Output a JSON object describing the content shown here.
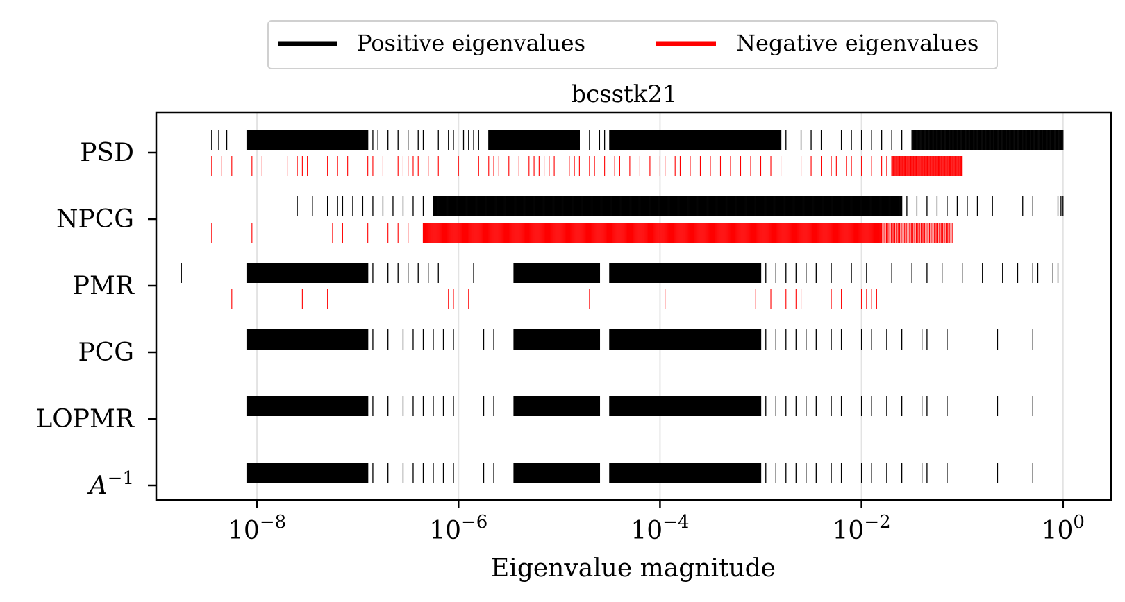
{
  "chart_data": {
    "type": "eventplot",
    "title": "bcsstk21",
    "xlabel": "Eigenvalue magnitude",
    "ylabel": "",
    "xscale": "log",
    "xlim": [
      1e-09,
      3
    ],
    "x_ticks": [
      1e-08,
      1e-06,
      0.0001,
      0.01,
      1
    ],
    "x_tick_labels": [
      {
        "base": "10",
        "exp": "−8"
      },
      {
        "base": "10",
        "exp": "−6"
      },
      {
        "base": "10",
        "exp": "−4"
      },
      {
        "base": "10",
        "exp": "−2"
      },
      {
        "base": "10",
        "exp": "0"
      }
    ],
    "grid": "x-major",
    "legend_position": "top-center-outside",
    "legend": [
      {
        "label": "Positive eigenvalues",
        "color": "#000000"
      },
      {
        "label": "Negative eigenvalues",
        "color": "#ff0000"
      }
    ],
    "methods": [
      {
        "label": "PSD",
        "positive": {
          "segments": [
            [
              -8.1,
              -6.9,
              350
            ],
            [
              -5.7,
              -4.8,
              250
            ],
            [
              -4.5,
              -2.8,
              300
            ],
            [
              -1.5,
              0.0,
              200
            ]
          ],
          "points": [
            -8.45,
            -8.38,
            -8.3,
            -6.85,
            -6.8,
            -6.7,
            -6.6,
            -6.5,
            -6.4,
            -6.35,
            -6.2,
            -6.1,
            -6.05,
            -5.95,
            -5.9,
            -5.85,
            -5.8,
            -4.7,
            -4.6,
            -4.55,
            -2.75,
            -2.6,
            -2.5,
            -2.4,
            -2.2,
            -2.1,
            -2.0,
            -1.9,
            -1.8,
            -1.7,
            -1.6
          ]
        },
        "negative": {
          "points": [
            -8.45,
            -8.35,
            -8.25,
            -8.05,
            -7.95,
            -7.7,
            -7.6,
            -7.55,
            -7.5,
            -7.3,
            -7.2,
            -7.1,
            -6.9,
            -6.85,
            -6.75,
            -6.6,
            -6.55,
            -6.5,
            -6.45,
            -6.4,
            -6.3,
            -6.2,
            -6.0,
            -5.8,
            -5.7,
            -5.65,
            -5.6,
            -5.5,
            -5.4,
            -5.3,
            -5.25,
            -5.2,
            -5.15,
            -5.1,
            -5.05,
            -4.9,
            -4.85,
            -4.8,
            -4.7,
            -4.65,
            -4.55,
            -4.45,
            -4.4,
            -4.3,
            -4.2,
            -4.1,
            -4.0,
            -3.95,
            -3.85,
            -3.8,
            -3.7,
            -3.6,
            -3.5,
            -3.4,
            -3.3,
            -3.2,
            -3.1,
            -3.0,
            -2.9,
            -2.8,
            -2.6,
            -2.5,
            -2.4,
            -2.3,
            -2.25,
            -2.15,
            -2.1,
            -2.0,
            -1.9,
            -1.8,
            -1.75,
            -1.7
          ],
          "segments": [
            [
              -1.7,
              -1.0,
              90
            ]
          ]
        }
      },
      {
        "label": "NPCG",
        "positive": {
          "segments": [
            [
              -6.25,
              -1.6,
              700
            ]
          ],
          "points": [
            -7.6,
            -7.45,
            -7.3,
            -7.2,
            -7.15,
            -7.05,
            -6.95,
            -6.85,
            -6.75,
            -6.65,
            -6.55,
            -6.45,
            -6.35,
            -1.55,
            -1.45,
            -1.35,
            -1.25,
            -1.15,
            -1.05,
            -0.95,
            -0.85,
            -0.7,
            -0.4,
            -0.3,
            -0.05,
            -0.02,
            0.0
          ]
        },
        "negative": {
          "points": [
            -8.45,
            -8.05,
            -7.25,
            -7.15,
            -6.9,
            -6.7,
            -6.6,
            -6.5,
            -6.35
          ],
          "segments": [
            [
              -6.35,
              -1.8,
              650
            ],
            [
              -1.8,
              -1.1,
              60
            ]
          ]
        }
      },
      {
        "label": "PMR",
        "positive": {
          "segments": [
            [
              -8.1,
              -6.9,
              350
            ],
            [
              -5.45,
              -4.6,
              250
            ],
            [
              -4.5,
              -3.0,
              300
            ]
          ],
          "points": [
            -8.75,
            -6.85,
            -6.7,
            -6.6,
            -6.5,
            -6.4,
            -6.3,
            -6.2,
            -5.85,
            -2.95,
            -2.85,
            -2.75,
            -2.65,
            -2.55,
            -2.45,
            -2.3,
            -2.1,
            -1.95,
            -1.7,
            -1.5,
            -1.35,
            -1.2,
            -1.0,
            -0.8,
            -0.6,
            -0.45,
            -0.3,
            -0.25,
            -0.1,
            -0.05
          ]
        },
        "negative": {
          "points": [
            -8.25,
            -7.55,
            -7.3,
            -6.1,
            -6.05,
            -5.9,
            -4.7,
            -3.95,
            -3.05,
            -2.9,
            -2.75,
            -2.65,
            -2.6,
            -2.3,
            -2.2,
            -2.0,
            -1.95,
            -1.9,
            -1.85
          ]
        }
      },
      {
        "label": "PCG",
        "positive": {
          "segments": [
            [
              -8.1,
              -6.9,
              350
            ],
            [
              -5.45,
              -4.6,
              250
            ],
            [
              -4.5,
              -3.0,
              300
            ]
          ],
          "points": [
            -6.85,
            -6.7,
            -6.55,
            -6.45,
            -6.35,
            -6.25,
            -6.15,
            -6.05,
            -5.75,
            -5.65,
            -2.95,
            -2.85,
            -2.75,
            -2.65,
            -2.55,
            -2.45,
            -2.3,
            -2.2,
            -2.0,
            -1.9,
            -1.75,
            -1.6,
            -1.4,
            -1.35,
            -1.15,
            -0.65,
            -0.3
          ]
        }
      },
      {
        "label": "LOPMR",
        "positive": {
          "segments": [
            [
              -8.1,
              -6.9,
              350
            ],
            [
              -5.45,
              -4.6,
              250
            ],
            [
              -4.5,
              -3.0,
              300
            ]
          ],
          "points": [
            -6.85,
            -6.7,
            -6.55,
            -6.45,
            -6.35,
            -6.25,
            -6.15,
            -6.05,
            -5.75,
            -5.65,
            -2.95,
            -2.85,
            -2.75,
            -2.65,
            -2.55,
            -2.45,
            -2.3,
            -2.2,
            -2.0,
            -1.9,
            -1.75,
            -1.6,
            -1.4,
            -1.35,
            -1.15,
            -0.65,
            -0.3
          ]
        }
      },
      {
        "label": "A",
        "label_sup": "−1",
        "positive": {
          "segments": [
            [
              -8.1,
              -6.9,
              350
            ],
            [
              -5.45,
              -4.6,
              250
            ],
            [
              -4.5,
              -3.0,
              300
            ]
          ],
          "points": [
            -6.85,
            -6.7,
            -6.55,
            -6.45,
            -6.35,
            -6.25,
            -6.15,
            -6.05,
            -5.75,
            -5.65,
            -2.95,
            -2.85,
            -2.75,
            -2.65,
            -2.55,
            -2.45,
            -2.3,
            -2.2,
            -2.0,
            -1.9,
            -1.75,
            -1.6,
            -1.4,
            -1.35,
            -1.15,
            -0.65,
            -0.3
          ]
        }
      }
    ]
  }
}
